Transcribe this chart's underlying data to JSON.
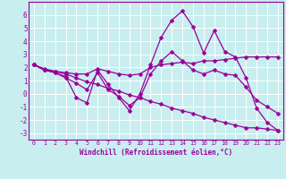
{
  "background_color": "#c8eef0",
  "grid_color": "#ffffff",
  "line_color": "#990099",
  "marker": "D",
  "markersize": 2.5,
  "linewidth": 0.9,
  "xlabel": "Windchill (Refroidissement éolien,°C)",
  "xlabel_fontsize": 5.5,
  "xtick_fontsize": 4.8,
  "ytick_fontsize": 5.5,
  "xlim": [
    -0.5,
    23.5
  ],
  "ylim": [
    -3.5,
    7.0
  ],
  "yticks": [
    -3,
    -2,
    -1,
    0,
    1,
    2,
    3,
    4,
    5,
    6
  ],
  "xticks": [
    0,
    1,
    2,
    3,
    4,
    5,
    6,
    7,
    8,
    9,
    10,
    11,
    12,
    13,
    14,
    15,
    16,
    17,
    18,
    19,
    20,
    21,
    22,
    23
  ],
  "series": [
    {
      "x": [
        0,
        1,
        2,
        3,
        4,
        5,
        6,
        7,
        8,
        9,
        10,
        11,
        12,
        13,
        14,
        15,
        16,
        17,
        18,
        19,
        20,
        21,
        22,
        23
      ],
      "y": [
        2.2,
        1.9,
        1.7,
        1.5,
        1.2,
        0.9,
        0.7,
        0.4,
        0.2,
        -0.1,
        -0.3,
        -0.6,
        -0.8,
        -1.1,
        -1.3,
        -1.5,
        -1.8,
        -2.0,
        -2.2,
        -2.4,
        -2.6,
        -2.6,
        -2.7,
        -2.8
      ]
    },
    {
      "x": [
        0,
        1,
        2,
        3,
        4,
        5,
        6,
        7,
        8,
        9,
        10,
        11,
        12,
        13,
        14,
        15,
        16,
        17,
        18,
        19,
        20,
        21,
        22,
        23
      ],
      "y": [
        2.2,
        1.8,
        1.6,
        1.3,
        -0.3,
        -0.7,
        1.8,
        0.7,
        -0.3,
        -1.3,
        0.0,
        2.2,
        4.3,
        5.6,
        6.3,
        5.1,
        3.1,
        4.8,
        3.2,
        2.8,
        1.2,
        -1.1,
        -2.2,
        -2.8
      ]
    },
    {
      "x": [
        0,
        1,
        2,
        3,
        4,
        5,
        6,
        7,
        8,
        9,
        10,
        11,
        12,
        13,
        14,
        15,
        16,
        17,
        18,
        19,
        20,
        21,
        22,
        23
      ],
      "y": [
        2.2,
        1.8,
        1.7,
        1.6,
        1.5,
        1.5,
        1.9,
        1.7,
        1.5,
        1.4,
        1.5,
        2.0,
        2.2,
        2.3,
        2.4,
        2.3,
        2.5,
        2.5,
        2.6,
        2.7,
        2.8,
        2.8,
        2.8,
        2.8
      ]
    },
    {
      "x": [
        0,
        1,
        2,
        3,
        4,
        5,
        6,
        7,
        8,
        9,
        10,
        11,
        12,
        13,
        14,
        15,
        16,
        17,
        18,
        19,
        20,
        21,
        22,
        23
      ],
      "y": [
        2.2,
        1.8,
        1.6,
        1.2,
        0.8,
        0.3,
        1.6,
        0.3,
        -0.2,
        -0.9,
        -0.3,
        1.5,
        2.5,
        3.2,
        2.5,
        1.8,
        1.5,
        1.8,
        1.5,
        1.4,
        0.5,
        -0.5,
        -1.0,
        -1.5
      ]
    }
  ]
}
